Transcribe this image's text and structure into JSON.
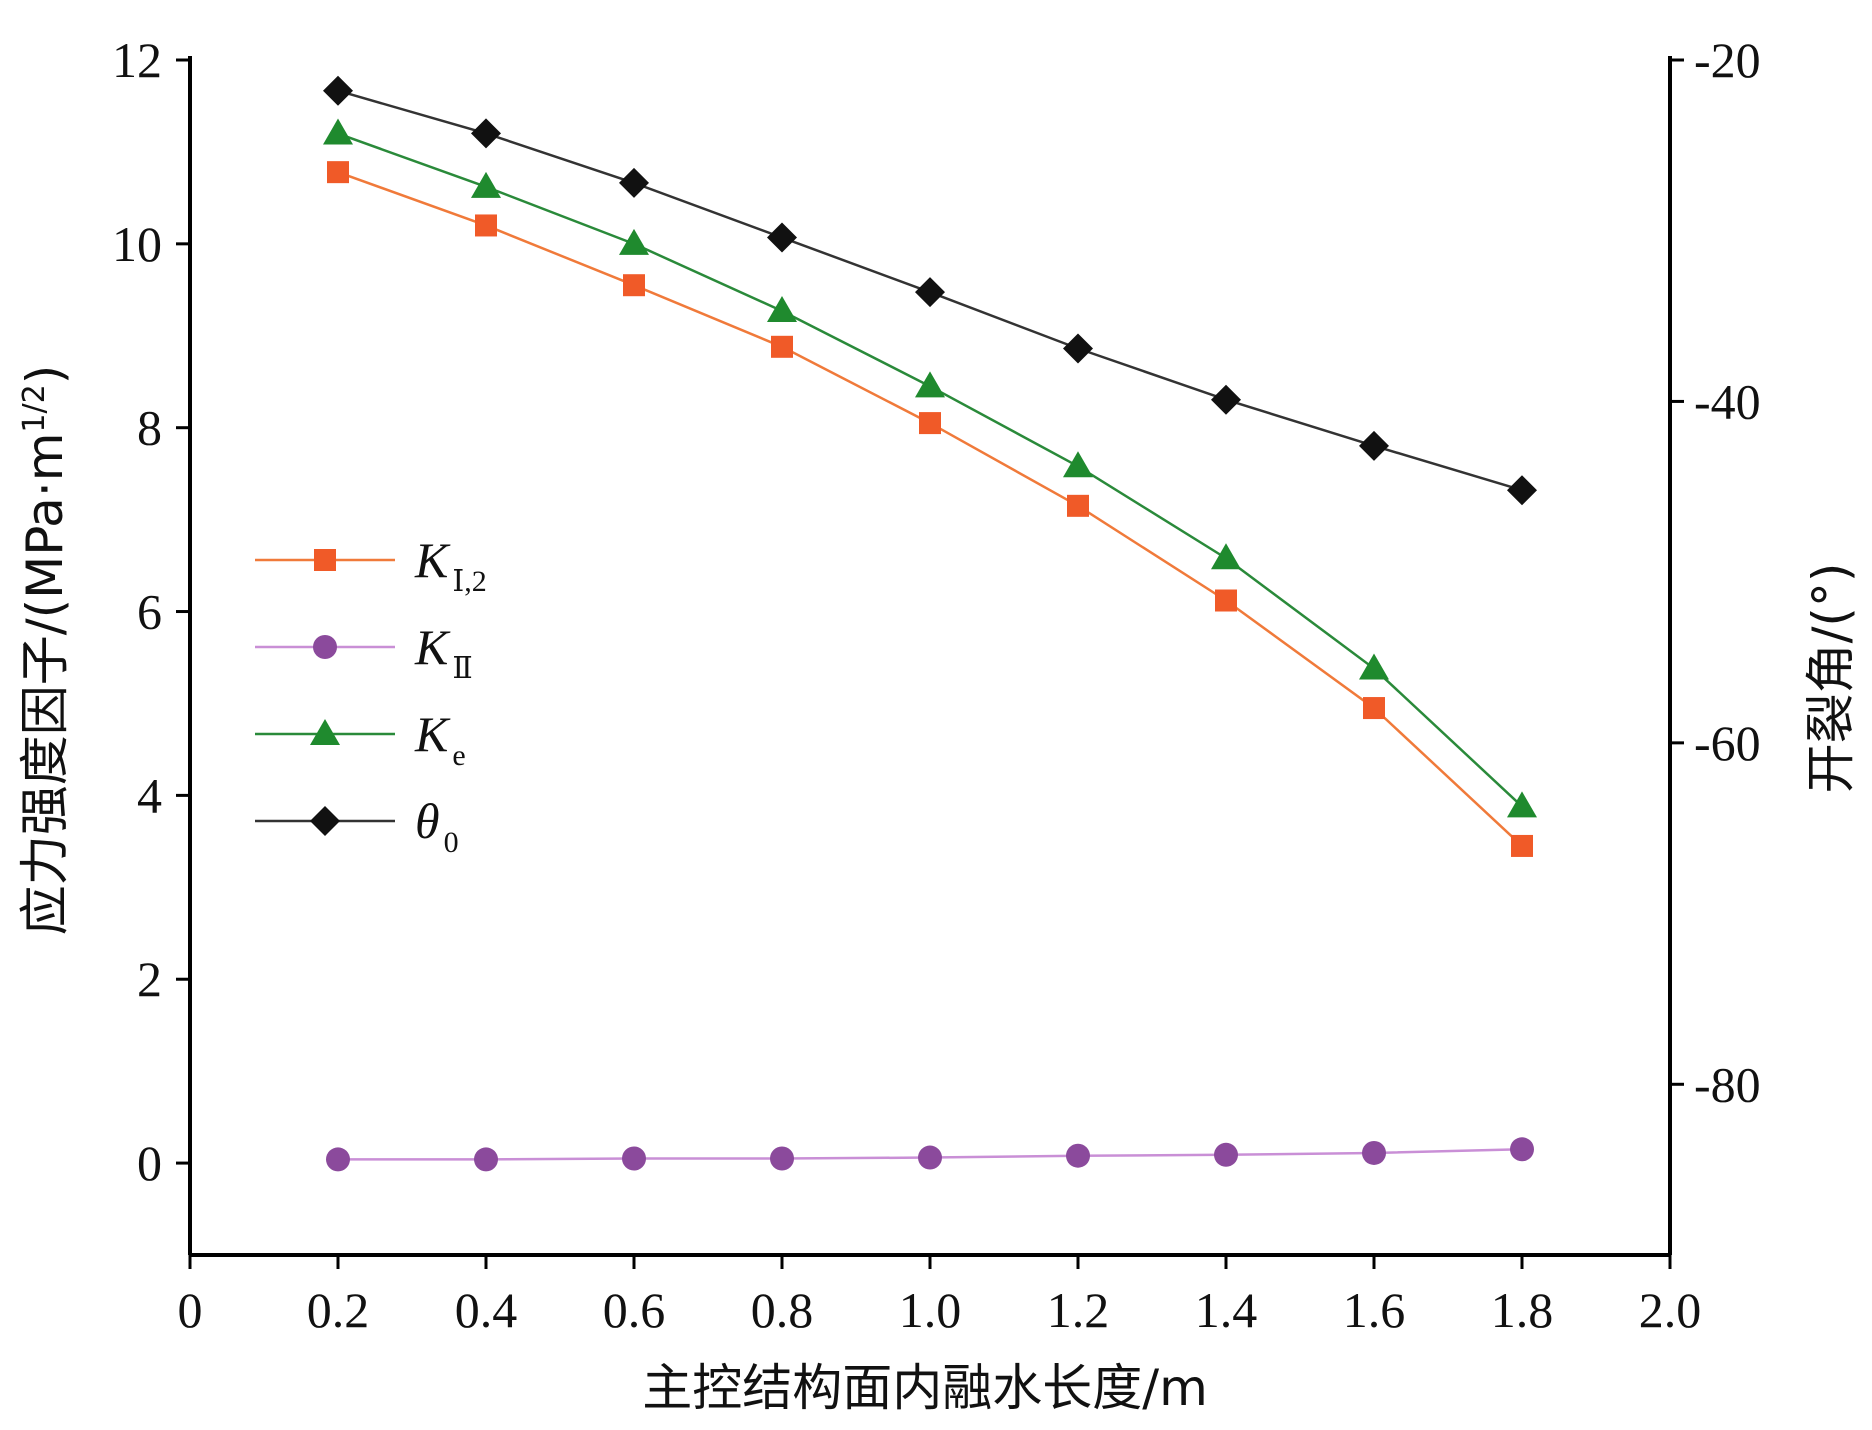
{
  "chart_data": {
    "type": "line",
    "title": "",
    "xlabel": "主控结构面内融水长度/m",
    "ylabel": "应力强度因子/(MPa·m",
    "ylabel_sup": "1/2",
    "ylabel_close": ")",
    "y2label": "开裂角/(°)",
    "xlim": [
      0,
      2.0
    ],
    "ylim": [
      -1,
      12
    ],
    "y2lim": [
      -90,
      -20
    ],
    "x_ticks": [
      "0",
      "0.2",
      "0.4",
      "0.6",
      "0.8",
      "1.0",
      "1.2",
      "1.4",
      "1.6",
      "1.8",
      "2.0"
    ],
    "y_ticks": [
      "0",
      "2",
      "4",
      "6",
      "8",
      "10",
      "12"
    ],
    "y2_ticks": [
      "-20",
      "-40",
      "-60",
      "-80"
    ],
    "x": [
      0.2,
      0.4,
      0.6,
      0.8,
      1.0,
      1.2,
      1.4,
      1.6,
      1.8
    ],
    "series": [
      {
        "name": "K",
        "sub": "Ⅰ,2",
        "axis": "left",
        "marker": "square",
        "color": "#f05a28",
        "line_color": "#f07a3a",
        "values": [
          10.78,
          10.2,
          9.55,
          8.88,
          8.05,
          7.15,
          6.12,
          4.95,
          3.45
        ]
      },
      {
        "name": "K",
        "sub": "Ⅱ",
        "axis": "left",
        "marker": "circle",
        "color": "#8b4a9c",
        "line_color": "#c98fd6",
        "values": [
          0.04,
          0.04,
          0.05,
          0.05,
          0.06,
          0.08,
          0.09,
          0.11,
          0.15
        ]
      },
      {
        "name": "K",
        "sub": "e",
        "axis": "left",
        "marker": "triangle",
        "color": "#1f8a2e",
        "line_color": "#2a8a3a",
        "values": [
          11.2,
          10.62,
          10.0,
          9.27,
          8.45,
          7.58,
          6.58,
          5.38,
          3.88
        ]
      },
      {
        "name": "θ",
        "sub": "0",
        "axis": "right",
        "marker": "diamond",
        "color": "#111111",
        "line_color": "#333333",
        "values": [
          -21.8,
          -24.3,
          -27.2,
          -30.4,
          -33.6,
          -36.9,
          -39.9,
          -42.6,
          -45.2
        ]
      }
    ],
    "legend_position": "left-middle"
  }
}
